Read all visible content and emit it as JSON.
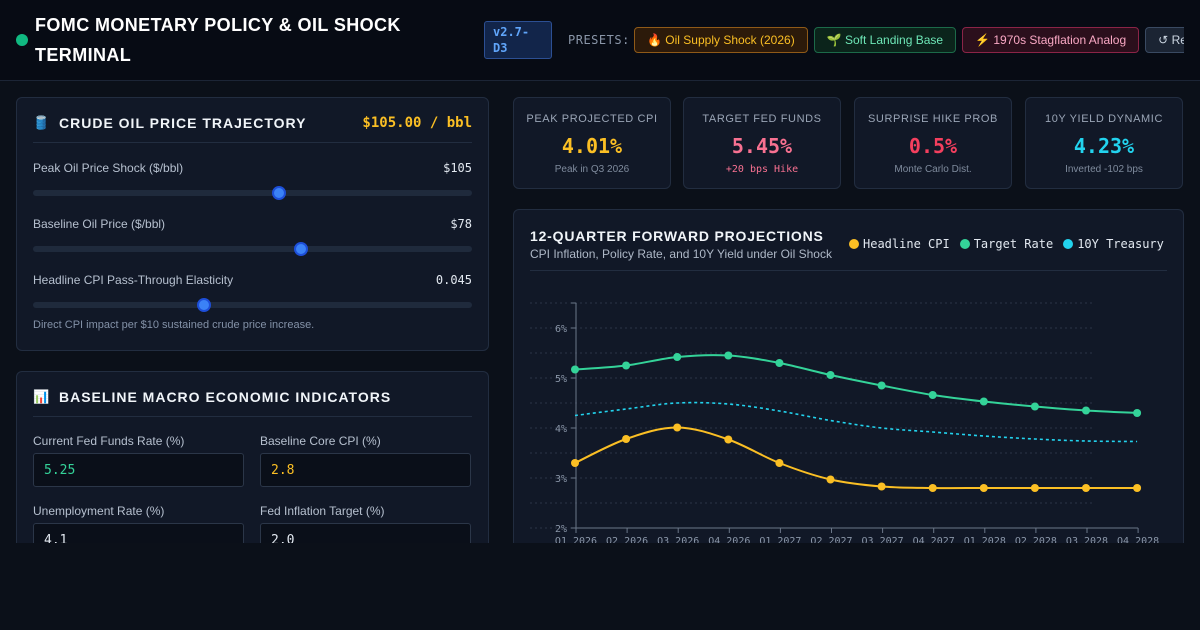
{
  "header": {
    "title": "FOMC MONETARY POLICY & OIL SHOCK TERMINAL",
    "version": "v2.7-D3",
    "presets_label": "PRESETS:",
    "presets": [
      {
        "icon": "🔥",
        "label": "Oil Supply Shock (2026)"
      },
      {
        "icon": "🌱",
        "label": "Soft Landing Base"
      },
      {
        "icon": "⚡",
        "label": "1970s Stagflation Analog"
      },
      {
        "icon": "↺",
        "label": "Reset"
      }
    ]
  },
  "oil_panel": {
    "icon": "🛢️",
    "title": "CRUDE OIL PRICE TRAJECTORY",
    "price_readout": "$105.00 / bbl",
    "sliders": [
      {
        "label": "Peak Oil Price Shock ($/bbl)",
        "value": "$105",
        "fill": 0.56
      },
      {
        "label": "Baseline Oil Price ($/bbl)",
        "value": "$78",
        "fill": 0.61
      },
      {
        "label": "Headline CPI Pass-Through Elasticity",
        "value": "0.045",
        "fill": 0.39
      }
    ],
    "helper_text": "Direct CPI impact per $10 sustained crude price increase."
  },
  "macro_panel": {
    "icon": "📊",
    "title": "BASELINE MACRO ECONOMIC INDICATORS",
    "fields": [
      {
        "label": "Current Fed Funds Rate (%)",
        "value": "5.25"
      },
      {
        "label": "Baseline Core CPI (%)",
        "value": "2.8"
      },
      {
        "label": "Unemployment Rate (%)",
        "value": "4.1"
      },
      {
        "label": "Fed Inflation Target (%)",
        "value": "2.0"
      }
    ]
  },
  "kpis": [
    {
      "label": "PEAK PROJECTED CPI",
      "value": "4.01%",
      "sub": "Peak in Q3 2026",
      "color": "#fbbf24"
    },
    {
      "label": "TARGET FED FUNDS",
      "value": "5.45%",
      "sub": "+20 bps Hike",
      "color": "#f87191"
    },
    {
      "label": "SURPRISE HIKE PROB",
      "value": "0.5%",
      "sub": "Monte Carlo Dist.",
      "color": "#f43f5e"
    },
    {
      "label": "10Y YIELD DYNAMIC",
      "value": "4.23%",
      "sub": "Inverted -102 bps",
      "color": "#22d3ee"
    }
  ],
  "chart_panel": {
    "title": "12-QUARTER FORWARD PROJECTIONS",
    "subtitle": "CPI Inflation, Policy Rate, and 10Y Yield under Oil Shock"
  },
  "chart_data": {
    "type": "line",
    "categories": [
      "Q1 2026",
      "Q2 2026",
      "Q3 2026",
      "Q4 2026",
      "Q1 2027",
      "Q2 2027",
      "Q3 2027",
      "Q4 2027",
      "Q1 2028",
      "Q2 2028",
      "Q3 2028",
      "Q4 2028"
    ],
    "ylim": [
      2,
      6.5
    ],
    "yticks": [
      "2%",
      "3%",
      "4%",
      "5%",
      "6%"
    ],
    "grid": true,
    "legend_placement": "top-right",
    "series": [
      {
        "name": "Headline CPI",
        "color": "#fbbf24",
        "style": "solid",
        "markers": true,
        "values": [
          3.3,
          3.78,
          4.01,
          3.77,
          3.3,
          2.97,
          2.83,
          2.8,
          2.8,
          2.8,
          2.8,
          2.8
        ]
      },
      {
        "name": "Target Rate",
        "color": "#34d399",
        "style": "solid",
        "markers": true,
        "values": [
          5.17,
          5.25,
          5.42,
          5.45,
          5.3,
          5.06,
          4.85,
          4.66,
          4.53,
          4.43,
          4.35,
          4.3
        ]
      },
      {
        "name": "10Y Treasury",
        "color": "#22d3ee",
        "style": "dashed",
        "markers": false,
        "values": [
          4.25,
          4.38,
          4.5,
          4.48,
          4.34,
          4.15,
          4.0,
          3.92,
          3.84,
          3.78,
          3.74,
          3.73
        ]
      }
    ]
  }
}
